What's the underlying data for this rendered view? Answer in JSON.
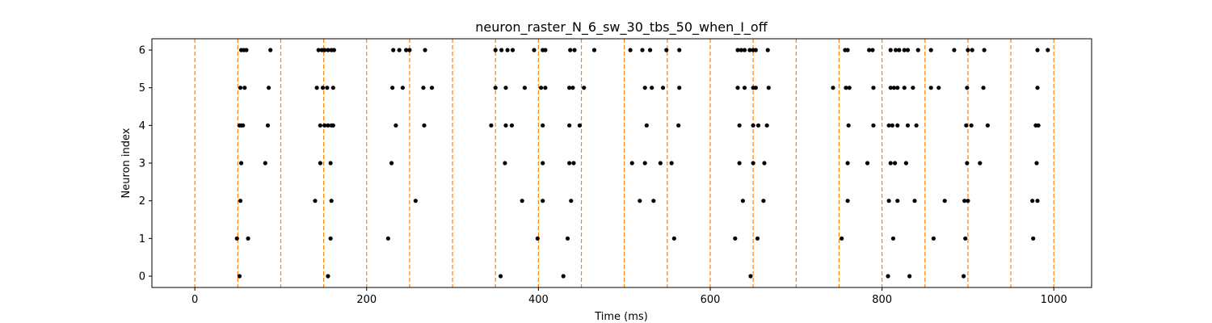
{
  "chart_data": {
    "type": "scatter",
    "title": "neuron_raster_N_6_sw_30_tbs_50_when_I_off",
    "xlabel": "Time (ms)",
    "ylabel": "Neuron index",
    "xlim": [
      -50,
      1044
    ],
    "ylim": [
      -0.3,
      6.3
    ],
    "xticks": [
      0,
      200,
      400,
      600,
      800,
      1000
    ],
    "yticks": [
      0,
      1,
      2,
      3,
      4,
      5,
      6
    ],
    "grid": false,
    "marker_color": "#000000",
    "vline_color": "#ff7f0e",
    "vlines": [
      0,
      50,
      100,
      150,
      200,
      250,
      300,
      350,
      400,
      450,
      500,
      550,
      600,
      650,
      700,
      750,
      800,
      850,
      900,
      950,
      1000
    ],
    "series": [
      {
        "neuron": 0,
        "x": [
          52,
          155,
          356,
          429,
          647,
          807,
          832,
          895
        ]
      },
      {
        "neuron": 1,
        "x": [
          49,
          62,
          158,
          225,
          399,
          434,
          558,
          629,
          655,
          753,
          813,
          860,
          897,
          976
        ]
      },
      {
        "neuron": 2,
        "x": [
          53,
          140,
          159,
          257,
          381,
          405,
          438,
          518,
          534,
          638,
          662,
          760,
          808,
          818,
          838,
          873,
          896,
          900,
          975,
          981
        ]
      },
      {
        "neuron": 3,
        "x": [
          54,
          82,
          146,
          158,
          229,
          361,
          405,
          436,
          441,
          509,
          524,
          542,
          555,
          634,
          650,
          663,
          760,
          783,
          810,
          815,
          828,
          899,
          914,
          980
        ]
      },
      {
        "neuron": 4,
        "x": [
          52,
          54,
          56,
          85,
          146,
          151,
          155,
          159,
          161,
          234,
          267,
          345,
          362,
          369,
          405,
          436,
          448,
          526,
          563,
          634,
          650,
          656,
          666,
          761,
          790,
          808,
          812,
          818,
          830,
          840,
          898,
          904,
          923,
          979,
          982
        ]
      },
      {
        "neuron": 5,
        "x": [
          53,
          58,
          86,
          142,
          149,
          154,
          161,
          230,
          242,
          266,
          276,
          350,
          362,
          384,
          403,
          408,
          436,
          440,
          453,
          524,
          532,
          545,
          564,
          632,
          640,
          650,
          653,
          668,
          743,
          758,
          762,
          790,
          810,
          814,
          818,
          826,
          836,
          857,
          866,
          899,
          918,
          981
        ]
      },
      {
        "neuron": 6,
        "x": [
          54,
          57,
          60,
          88,
          144,
          148,
          151,
          155,
          159,
          162,
          231,
          238,
          246,
          250,
          268,
          350,
          357,
          364,
          370,
          395,
          405,
          408,
          437,
          442,
          465,
          507,
          521,
          530,
          549,
          564,
          632,
          636,
          640,
          646,
          650,
          653,
          667,
          757,
          760,
          785,
          789,
          810,
          816,
          820,
          826,
          830,
          842,
          857,
          884,
          900,
          905,
          919,
          981,
          993
        ]
      }
    ]
  }
}
